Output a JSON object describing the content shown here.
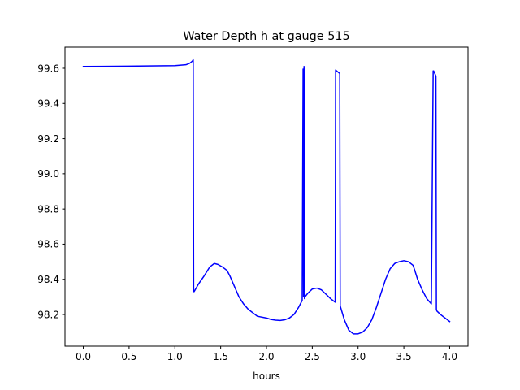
{
  "chart_data": {
    "type": "line",
    "title": "Water Depth h at gauge 515",
    "xlabel": "hours",
    "ylabel": "",
    "xlim": [
      -0.2,
      4.2
    ],
    "ylim": [
      98.02,
      99.72
    ],
    "xticks": [
      0.0,
      0.5,
      1.0,
      1.5,
      2.0,
      2.5,
      3.0,
      3.5,
      4.0
    ],
    "xtick_labels": [
      "0.0",
      "0.5",
      "1.0",
      "1.5",
      "2.0",
      "2.5",
      "3.0",
      "3.5",
      "4.0"
    ],
    "yticks": [
      98.2,
      98.4,
      98.6,
      98.8,
      99.0,
      99.2,
      99.4,
      99.6
    ],
    "ytick_labels": [
      "98.2",
      "98.4",
      "98.6",
      "98.8",
      "99.0",
      "99.2",
      "99.4",
      "99.6"
    ],
    "grid": false,
    "series": [
      {
        "color": "#0000ff",
        "x": [
          0.0,
          0.5,
          1.0,
          1.12,
          1.16,
          1.19,
          1.2,
          1.205,
          1.21,
          1.26,
          1.32,
          1.38,
          1.43,
          1.47,
          1.52,
          1.57,
          1.6,
          1.65,
          1.7,
          1.75,
          1.8,
          1.9,
          2.0,
          2.05,
          2.1,
          2.15,
          2.2,
          2.25,
          2.3,
          2.35,
          2.39,
          2.4,
          2.405,
          2.41,
          2.415,
          2.42,
          2.45,
          2.5,
          2.55,
          2.6,
          2.65,
          2.7,
          2.75,
          2.755,
          2.8,
          2.805,
          2.81,
          2.85,
          2.9,
          2.95,
          3.0,
          3.05,
          3.1,
          3.15,
          3.2,
          3.25,
          3.3,
          3.35,
          3.4,
          3.45,
          3.5,
          3.55,
          3.6,
          3.62,
          3.65,
          3.7,
          3.75,
          3.8,
          3.82,
          3.825,
          3.85,
          3.855,
          3.86,
          3.9,
          4.0
        ],
        "y": [
          99.61,
          99.612,
          99.615,
          99.62,
          99.628,
          99.64,
          99.648,
          98.33,
          98.33,
          98.375,
          98.42,
          98.47,
          98.49,
          98.485,
          98.47,
          98.45,
          98.42,
          98.36,
          98.3,
          98.26,
          98.23,
          98.19,
          98.18,
          98.172,
          98.168,
          98.166,
          98.17,
          98.18,
          98.2,
          98.24,
          98.28,
          99.595,
          98.3,
          99.61,
          98.29,
          98.3,
          98.32,
          98.345,
          98.35,
          98.34,
          98.315,
          98.29,
          98.27,
          99.59,
          99.57,
          98.25,
          98.24,
          98.17,
          98.11,
          98.09,
          98.09,
          98.1,
          98.125,
          98.17,
          98.24,
          98.32,
          98.4,
          98.46,
          98.49,
          98.5,
          98.506,
          98.5,
          98.48,
          98.45,
          98.4,
          98.34,
          98.29,
          98.26,
          99.585,
          99.585,
          99.555,
          98.23,
          98.22,
          98.2,
          98.16
        ]
      }
    ]
  }
}
